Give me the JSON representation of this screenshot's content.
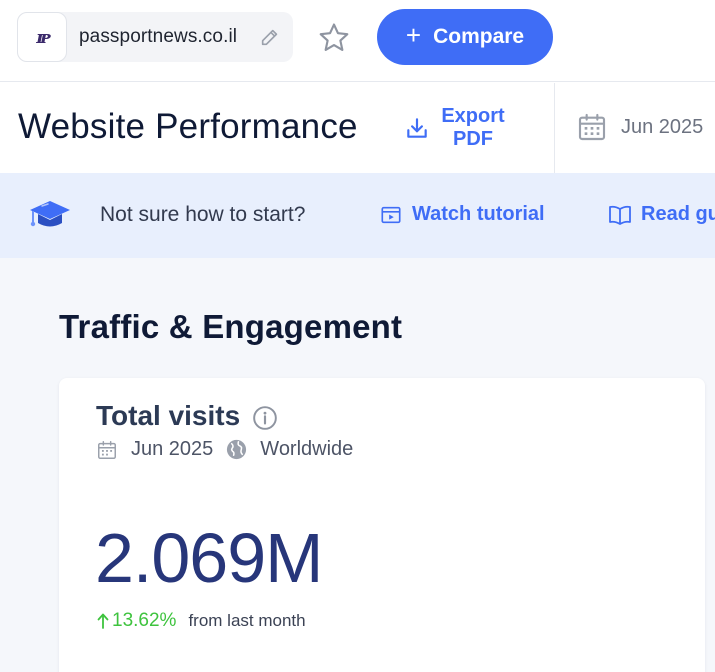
{
  "topbar": {
    "site_name": "passportnews.co.il",
    "favicon_text": "ᵀᴾ",
    "compare_label": "Compare",
    "compare_plus": "+"
  },
  "header": {
    "title": "Website Performance",
    "export_label_line1": "Export",
    "export_label_line2": "PDF",
    "date": "Jun 2025"
  },
  "banner": {
    "prompt": "Not sure how to start?",
    "watch_label": "Watch tutorial",
    "read_label": "Read guide"
  },
  "main": {
    "section_title": "Traffic & Engagement",
    "card": {
      "title": "Total visits",
      "date": "Jun 2025",
      "region": "Worldwide",
      "value": "2.069M",
      "change": "13.62%",
      "change_suffix": "from last month"
    }
  },
  "colors": {
    "accent": "#3f6df6",
    "positive": "#3ec33e",
    "banner_bg": "#e8effd",
    "value_text": "#27367a"
  },
  "icons": [
    "edit-icon",
    "star-icon",
    "download-icon",
    "calendar-icon",
    "graduation-cap-icon",
    "video-icon",
    "book-icon",
    "info-icon",
    "globe-icon",
    "arrow-up-icon"
  ]
}
